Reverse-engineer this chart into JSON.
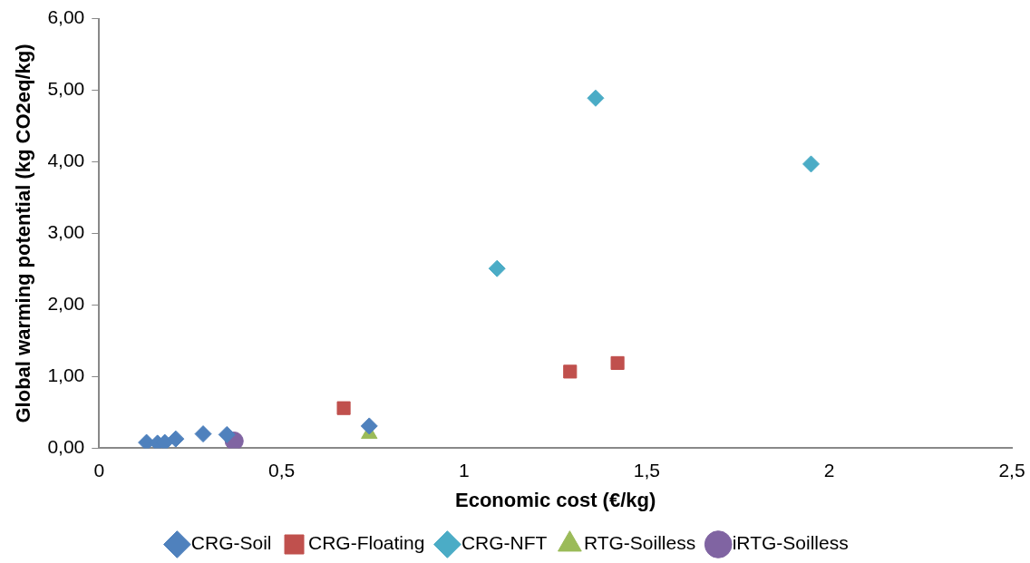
{
  "chart_data": {
    "type": "scatter",
    "xlabel": "Economic cost (€/kg)",
    "ylabel": "Global warming potential (kg CO2eq/kg)",
    "xlim": [
      0,
      2.5
    ],
    "xticks": [
      0,
      {
        "value": 0.5,
        "label": "0,5"
      },
      1,
      {
        "value": 1.5,
        "label": "1,5"
      },
      2,
      {
        "value": 2.5,
        "label": "2,5"
      }
    ],
    "ylim": [
      0,
      6
    ],
    "yticks": [
      {
        "value": 0,
        "label": "0,00"
      },
      {
        "value": 1,
        "label": "1,00"
      },
      {
        "value": 2,
        "label": "2,00"
      },
      {
        "value": 3,
        "label": "3,00"
      },
      {
        "value": 4,
        "label": "4,00"
      },
      {
        "value": 5,
        "label": "5,00"
      },
      {
        "value": 6,
        "label": "6,00"
      }
    ],
    "grid": false,
    "legend": "bottom",
    "series": [
      {
        "name": "CRG-Soil",
        "color": "#4f81bd",
        "marker": "diamond",
        "x": [
          0.13,
          0.16,
          0.18,
          0.21,
          0.285,
          0.35,
          0.74
        ],
        "values": [
          0.08,
          0.07,
          0.08,
          0.13,
          0.2,
          0.19,
          0.31
        ]
      },
      {
        "name": "CRG-Floating",
        "color": "#c0504d",
        "marker": "square",
        "x": [
          0.67,
          1.29,
          1.42
        ],
        "values": [
          0.56,
          1.07,
          1.19
        ]
      },
      {
        "name": "CRG-NFT",
        "color": "#4bacc6",
        "marker": "diamond",
        "x": [
          1.09,
          1.36,
          1.95
        ],
        "values": [
          2.51,
          4.89,
          3.97
        ]
      },
      {
        "name": "RTG-Soilless",
        "color": "#9bbb59",
        "marker": "triangle",
        "x": [
          0.74
        ],
        "values": [
          0.2
        ]
      },
      {
        "name": "iRTG-Soilless",
        "color": "#8064a2",
        "marker": "circle",
        "x": [
          0.37
        ],
        "values": [
          0.1
        ]
      }
    ]
  }
}
